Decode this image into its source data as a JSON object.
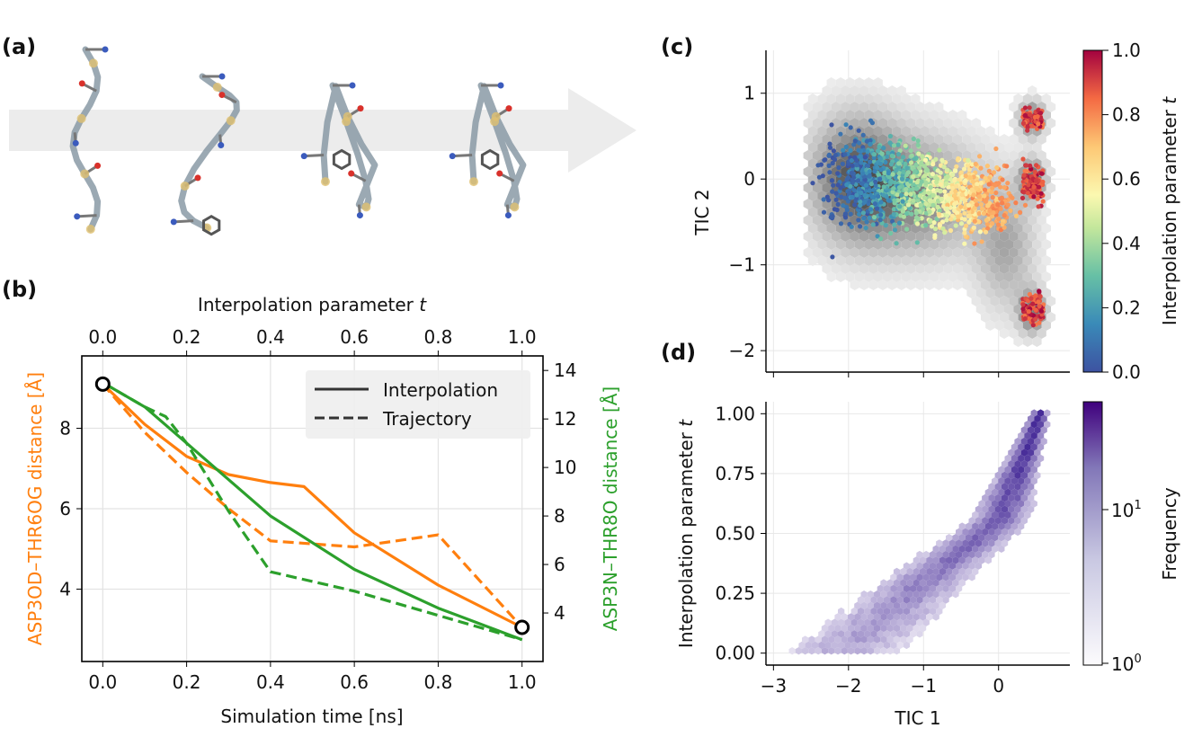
{
  "panel_labels": {
    "a": "(a)",
    "b": "(b)",
    "c": "(c)",
    "d": "(d)"
  },
  "panel_a": {
    "description_visible": "sequence of four peptide conformations along an arrow"
  },
  "colors": {
    "orange": "#ff7f0e",
    "green": "#2ca02c",
    "purple": "#4a2a9a",
    "arrow": "#ececec"
  },
  "chart_data": [
    {
      "id": "b",
      "type": "line",
      "title": "",
      "xlabel": "Simulation time [ns]",
      "x2label": "Interpolation parameter",
      "x2label_italic": "t",
      "ylabel": "ASP3OD–THR6OG distance [Å]",
      "y2label": "ASP3N–THR8O distance [Å]",
      "xlim": [
        -0.05,
        1.05
      ],
      "ylim": [
        2.2,
        9.8
      ],
      "y2lim": [
        2.0,
        14.6
      ],
      "xticks": [
        "0.0",
        "0.2",
        "0.4",
        "0.6",
        "0.8",
        "1.0"
      ],
      "x2ticks": [
        "0.0",
        "0.2",
        "0.4",
        "0.6",
        "0.8",
        "1.0"
      ],
      "yticks": [
        "4",
        "6",
        "8"
      ],
      "y2ticks": [
        "4",
        "6",
        "8",
        "10",
        "12",
        "14"
      ],
      "legend": {
        "position": "top-right",
        "entries": [
          "Interpolation",
          "Trajectory"
        ]
      },
      "endpoints": [
        [
          0.0,
          9.1
        ],
        [
          1.0,
          3.05
        ]
      ],
      "series": [
        {
          "name": "ASP3OD–THR6OG Interpolation",
          "axis": "left",
          "style": "solid",
          "color": "#ff7f0e",
          "x": [
            0.0,
            0.1,
            0.2,
            0.3,
            0.4,
            0.48,
            0.6,
            0.8,
            1.0
          ],
          "y": [
            9.1,
            8.1,
            7.3,
            6.85,
            6.65,
            6.55,
            5.4,
            4.1,
            3.05
          ]
        },
        {
          "name": "ASP3OD–THR6OG Trajectory",
          "axis": "left",
          "style": "dashed",
          "color": "#ff7f0e",
          "x": [
            0.0,
            0.1,
            0.2,
            0.3,
            0.4,
            0.6,
            0.8,
            1.0
          ],
          "y": [
            9.1,
            7.9,
            6.9,
            6.0,
            5.2,
            5.05,
            5.35,
            3.05
          ]
        },
        {
          "name": "ASP3N–THR8O Interpolation",
          "axis": "right",
          "style": "solid",
          "color": "#2ca02c",
          "x": [
            0.0,
            0.1,
            0.2,
            0.3,
            0.4,
            0.6,
            0.8,
            1.0
          ],
          "y": [
            13.5,
            12.5,
            11.0,
            9.5,
            8.0,
            5.8,
            4.2,
            2.9
          ]
        },
        {
          "name": "ASP3N–THR8O Trajectory",
          "axis": "right",
          "style": "dashed",
          "color": "#2ca02c",
          "x": [
            0.0,
            0.1,
            0.15,
            0.2,
            0.3,
            0.4,
            0.6,
            0.8,
            1.0
          ],
          "y": [
            13.5,
            12.5,
            12.1,
            11.0,
            8.2,
            5.7,
            4.9,
            3.9,
            2.9
          ]
        }
      ]
    },
    {
      "id": "c",
      "type": "scatter",
      "xlabel": "",
      "ylabel": "TIC 2",
      "xlim": [
        -3.1,
        0.95
      ],
      "ylim": [
        -2.25,
        1.5
      ],
      "yticks": [
        "1",
        "0",
        "−1",
        "−2"
      ],
      "colorbar": {
        "label": "Interpolation parameter",
        "label_italic": "t",
        "ticks": [
          "0.0",
          "0.2",
          "0.4",
          "0.6",
          "0.8",
          "1.0"
        ],
        "colormap": "Spectral_r"
      },
      "background": "gray hexbin density of TIC projection",
      "points": "colored by interpolation parameter t from 0.0 (blue, TIC1≈−2) to 1.0 (red, TIC1≈0.5)"
    },
    {
      "id": "d",
      "type": "heatmap",
      "xlabel": "TIC 1",
      "ylabel": "Interpolation parameter",
      "ylabel_italic": "t",
      "xlim": [
        -3.1,
        0.95
      ],
      "ylim": [
        -0.05,
        1.05
      ],
      "xticks": [
        "−3",
        "−2",
        "−1",
        "0"
      ],
      "yticks": [
        "0.00",
        "0.25",
        "0.50",
        "0.75",
        "1.00"
      ],
      "colorbar": {
        "label": "Frequency",
        "scale": "log",
        "ticks": [
          "10",
          "10"
        ],
        "tick_exponents": [
          "0",
          "1"
        ],
        "colormap": "Purples"
      },
      "trend": [
        [
          -2.1,
          0.0
        ],
        [
          -1.5,
          0.15
        ],
        [
          -1.0,
          0.3
        ],
        [
          -0.5,
          0.42
        ],
        [
          0.0,
          0.55
        ],
        [
          0.2,
          0.7
        ],
        [
          0.4,
          0.87
        ],
        [
          0.55,
          1.0
        ]
      ]
    }
  ]
}
